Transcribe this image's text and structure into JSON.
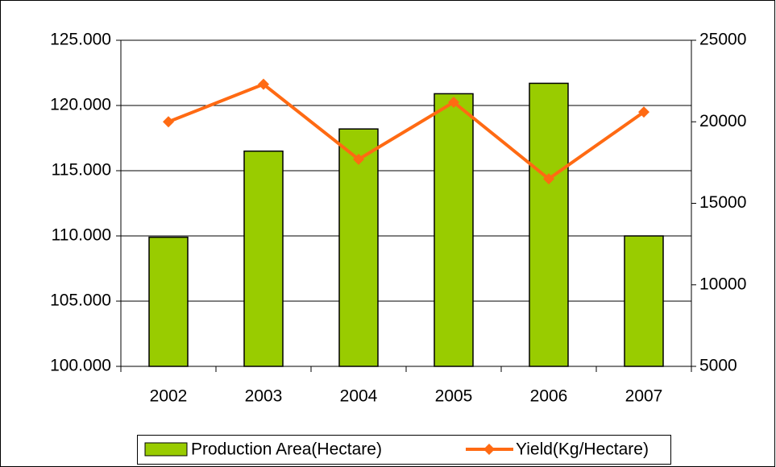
{
  "chart_data": {
    "type": "bar-line",
    "categories": [
      "2002",
      "2003",
      "2004",
      "2005",
      "2006",
      "2007"
    ],
    "series": [
      {
        "name": "Production Area(Hectare)",
        "type": "bar",
        "color": "#99cc00",
        "values": [
          109900,
          116500,
          118200,
          120900,
          121700,
          110000
        ]
      },
      {
        "name": "Yield(Kg/Hectare)",
        "type": "line",
        "axis": "y2",
        "color": "#ff6a13",
        "values": [
          20000,
          22300,
          17700,
          21200,
          16500,
          20600
        ]
      }
    ],
    "ylim": [
      100000,
      125000
    ],
    "yticks": [
      {
        "value": 100000,
        "label": "100.000"
      },
      {
        "value": 105000,
        "label": "105.000"
      },
      {
        "value": 110000,
        "label": "110.000"
      },
      {
        "value": 115000,
        "label": "115.000"
      },
      {
        "value": 120000,
        "label": "120.000"
      },
      {
        "value": 125000,
        "label": "125.000"
      }
    ],
    "y2lim": [
      5000,
      25000
    ],
    "y2ticks": [
      5000,
      10000,
      15000,
      20000,
      25000
    ],
    "grid": true,
    "legend": "bottom"
  }
}
